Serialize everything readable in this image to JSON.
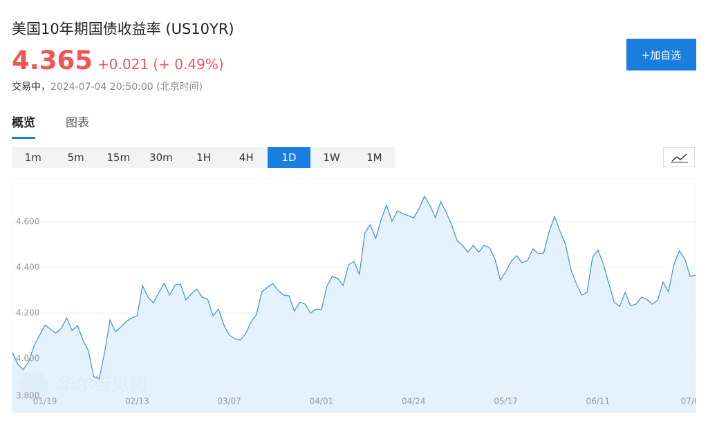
{
  "header": {
    "title": "美国10年期国债收益率 (US10YR)",
    "price": "4.365",
    "change": "+0.021 (+ 0.49%)",
    "status": "交易中，",
    "time": "2024-07-04 20:50:00 (北京时间)",
    "button": "+加自选"
  },
  "tabs": {
    "items": [
      "概览",
      "图表"
    ],
    "active": "概览"
  },
  "timeframes": {
    "items": [
      "1m",
      "5m",
      "15m",
      "30m",
      "1H",
      "4H",
      "1D",
      "1W",
      "1M"
    ],
    "selected": "1D"
  },
  "chart_data": {
    "type": "area",
    "color": "#3d8fdc",
    "fill": "#e2effb",
    "grid": true,
    "watermark": "华尔街见闻",
    "categories": [
      null,
      null,
      null,
      null,
      null,
      null,
      "01/19",
      null,
      null,
      null,
      null,
      null,
      null,
      null,
      null,
      null,
      null,
      null,
      null,
      null,
      null,
      null,
      null,
      "02/13",
      null,
      null,
      null,
      null,
      null,
      null,
      null,
      null,
      null,
      null,
      null,
      null,
      null,
      null,
      null,
      null,
      "03/07",
      null,
      null,
      null,
      null,
      null,
      null,
      null,
      null,
      null,
      null,
      null,
      null,
      null,
      null,
      null,
      null,
      "04/01",
      null,
      null,
      null,
      null,
      null,
      null,
      null,
      null,
      null,
      null,
      null,
      null,
      null,
      null,
      null,
      null,
      "04/24",
      null,
      null,
      null,
      null,
      null,
      null,
      null,
      null,
      null,
      null,
      null,
      null,
      null,
      null,
      null,
      null,
      "05/17",
      null,
      null,
      null,
      null,
      null,
      null,
      null,
      null,
      null,
      null,
      null,
      null,
      null,
      null,
      null,
      null,
      "06/11",
      null,
      null,
      null,
      null,
      null,
      null,
      null,
      null,
      null,
      null,
      null,
      null,
      null,
      null,
      null,
      null,
      "07/0",
      null
    ],
    "values": [
      4.027,
      3.976,
      3.952,
      3.988,
      4.058,
      4.103,
      4.148,
      4.13,
      4.112,
      4.133,
      4.179,
      4.124,
      4.145,
      4.082,
      4.036,
      3.921,
      3.912,
      4.027,
      4.17,
      4.118,
      4.139,
      4.164,
      4.179,
      4.188,
      4.321,
      4.27,
      4.245,
      4.291,
      4.33,
      4.279,
      4.324,
      4.327,
      4.258,
      4.285,
      4.306,
      4.27,
      4.261,
      4.188,
      4.218,
      4.148,
      4.103,
      4.088,
      4.082,
      4.109,
      4.161,
      4.194,
      4.294,
      4.312,
      4.33,
      4.3,
      4.279,
      4.276,
      4.209,
      4.248,
      4.239,
      4.2,
      4.218,
      4.215,
      4.318,
      4.361,
      4.352,
      4.321,
      4.412,
      4.427,
      4.37,
      4.552,
      4.588,
      4.527,
      4.609,
      4.673,
      4.603,
      4.648,
      4.636,
      4.627,
      4.618,
      4.658,
      4.712,
      4.673,
      4.618,
      4.688,
      4.642,
      4.588,
      4.518,
      4.497,
      4.467,
      4.497,
      4.467,
      4.497,
      4.488,
      4.436,
      4.345,
      4.382,
      4.427,
      4.452,
      4.421,
      4.43,
      4.482,
      4.461,
      4.464,
      4.558,
      4.624,
      4.558,
      4.503,
      4.391,
      4.33,
      4.279,
      4.291,
      4.445,
      4.476,
      4.415,
      4.33,
      4.248,
      4.23,
      4.291,
      4.233,
      4.239,
      4.27,
      4.261,
      4.239,
      4.255,
      4.336,
      4.294,
      4.412,
      4.473,
      4.439,
      4.361,
      4.367
    ],
    "ylim": [
      3.764,
      4.791
    ],
    "yticks": [
      {
        "value": 3.8,
        "label": "3.800"
      },
      {
        "value": 4.0,
        "label": "4.000"
      },
      {
        "value": 4.2,
        "label": "4.200"
      },
      {
        "value": 4.4,
        "label": "4.400"
      },
      {
        "value": 4.6,
        "label": "4.600"
      }
    ]
  }
}
